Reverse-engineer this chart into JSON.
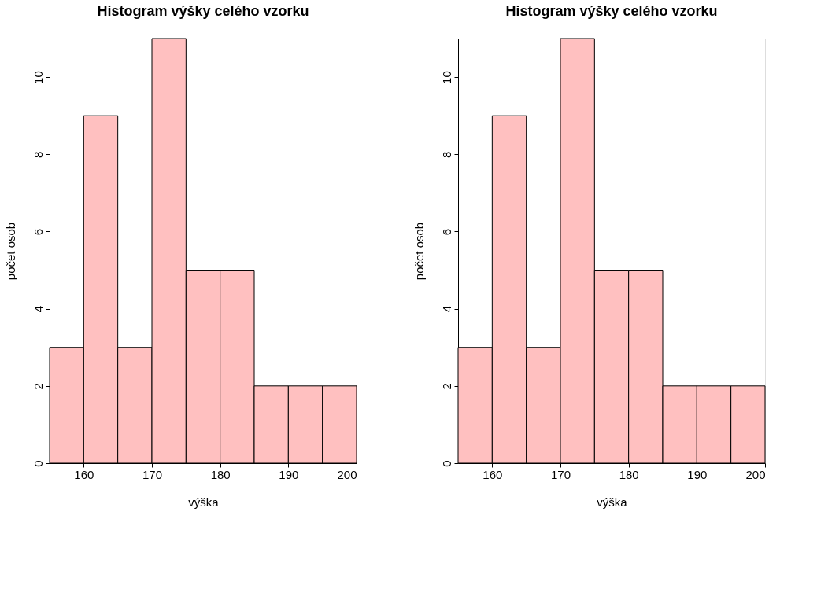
{
  "chart_data": [
    {
      "type": "histogram",
      "title": "Histogram výšky celého vzorku",
      "xlabel": "výška",
      "ylabel": "počet osob",
      "bins": [
        155,
        160,
        165,
        170,
        175,
        180,
        185,
        190,
        195,
        200
      ],
      "values": [
        3,
        9,
        3,
        11,
        5,
        5,
        2,
        2,
        2
      ],
      "color": "#ffc0c0",
      "xlim": [
        155,
        200
      ],
      "xticks": [
        160,
        170,
        180,
        190,
        200
      ],
      "ylim": [
        0,
        11
      ],
      "yticks": [
        0,
        2,
        4,
        6,
        8,
        10
      ]
    },
    {
      "type": "histogram",
      "title": "Histogram výšky celého vzorku",
      "xlabel": "výška",
      "ylabel": "počet osob",
      "bins": [
        155,
        160,
        165,
        170,
        175,
        180,
        185,
        190,
        195,
        200
      ],
      "values": [
        3,
        9,
        3,
        11,
        5,
        5,
        2,
        2,
        2
      ],
      "color": "#ffc0c0",
      "xlim": [
        155,
        200
      ],
      "xticks": [
        160,
        170,
        180,
        190,
        200
      ],
      "ylim": [
        0,
        11
      ],
      "yticks": [
        0,
        2,
        4,
        6,
        8,
        10
      ]
    }
  ]
}
